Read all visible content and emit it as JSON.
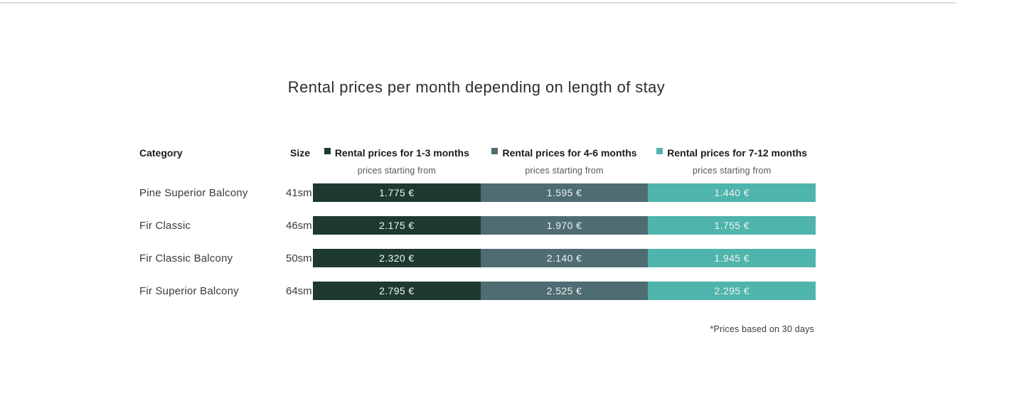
{
  "title": "Rental prices per month depending on length of stay",
  "table": {
    "category_header": "Category",
    "size_header": "Size",
    "columns": [
      {
        "label": "Rental prices for 1-3 months",
        "sublabel": "prices starting from",
        "color": "#1e3a30"
      },
      {
        "label": "Rental prices for 4-6 months",
        "sublabel": "prices starting from",
        "color": "#4e6c71"
      },
      {
        "label": "Rental prices for 7-12 months",
        "sublabel": "prices starting from",
        "color": "#4fb4ab"
      }
    ],
    "rows": [
      {
        "category": "Pine Superior Balcony",
        "size": "41sm",
        "prices": [
          "1.775 €",
          "1.595 €",
          "1.440 €"
        ]
      },
      {
        "category": "Fir Classic",
        "size": "46sm",
        "prices": [
          "2.175 €",
          "1.970 €",
          "1.755 €"
        ]
      },
      {
        "category": "Fir Classic Balcony",
        "size": "50sm",
        "prices": [
          "2.320 €",
          "2.140 €",
          "1.945 €"
        ]
      },
      {
        "category": "Fir Superior Balcony",
        "size": "64sm",
        "prices": [
          "2.795 €",
          "2.525 €",
          "2.295 €"
        ]
      }
    ]
  },
  "footnote": "*Prices based on 30 days",
  "colors": {
    "bar_1_3_months": "#1e3a30",
    "bar_4_6_months": "#4e6c71",
    "bar_7_12_months": "#4fb4ab",
    "bar_text": "#eef3f1",
    "top_border": "#dedede"
  },
  "chart_data": {
    "type": "table",
    "title": "Rental prices per month depending on length of stay",
    "categories": [
      "Pine Superior Balcony",
      "Fir Classic",
      "Fir Classic Balcony",
      "Fir Superior Balcony"
    ],
    "sizes": [
      "41sm",
      "46sm",
      "50sm",
      "64sm"
    ],
    "series": [
      {
        "name": "Rental prices for 1-3 months",
        "values": [
          1775,
          2175,
          2320,
          2795
        ],
        "color": "#1e3a30"
      },
      {
        "name": "Rental prices for 4-6 months",
        "values": [
          1595,
          1970,
          2140,
          2525
        ],
        "color": "#4e6c71"
      },
      {
        "name": "Rental prices for 7-12 months",
        "values": [
          1440,
          1755,
          1945,
          2295
        ],
        "color": "#4fb4ab"
      }
    ],
    "unit": "EUR per month",
    "subheader_per_series": "prices starting from",
    "note": "*Prices based on 30 days",
    "legend_position": "top"
  }
}
